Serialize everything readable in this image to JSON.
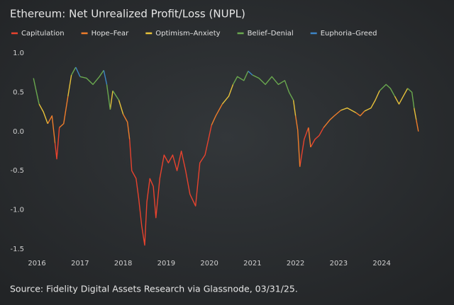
{
  "chart_data": {
    "type": "line",
    "title": "Ethereum: Net Unrealized Profit/Loss (NUPL)",
    "source": "Source: Fidelity Digital Assets Research via Glassnode, 03/31/25.",
    "x": [
      2015.92,
      2015.97,
      2016.05,
      2016.15,
      2016.25,
      2016.35,
      2016.42,
      2016.46,
      2016.52,
      2016.62,
      2016.72,
      2016.8,
      2016.9,
      2017.0,
      2017.15,
      2017.3,
      2017.45,
      2017.55,
      2017.62,
      2017.7,
      2017.76,
      2017.9,
      2018.0,
      2018.1,
      2018.15,
      2018.2,
      2018.3,
      2018.36,
      2018.43,
      2018.5,
      2018.55,
      2018.62,
      2018.7,
      2018.76,
      2018.85,
      2018.95,
      2019.05,
      2019.15,
      2019.25,
      2019.35,
      2019.45,
      2019.55,
      2019.68,
      2019.78,
      2019.9,
      2019.98,
      2020.05,
      2020.15,
      2020.3,
      2020.45,
      2020.55,
      2020.65,
      2020.8,
      2020.9,
      2021.0,
      2021.15,
      2021.3,
      2021.45,
      2021.6,
      2021.75,
      2021.85,
      2021.95,
      2022.0,
      2022.05,
      2022.1,
      2022.2,
      2022.3,
      2022.35,
      2022.45,
      2022.55,
      2022.65,
      2022.8,
      2022.9,
      2023.05,
      2023.2,
      2023.4,
      2023.5,
      2023.6,
      2023.75,
      2023.85,
      2023.95,
      2024.1,
      2024.2,
      2024.3,
      2024.4,
      2024.5,
      2024.6,
      2024.7,
      2024.75,
      2024.8,
      2024.85
    ],
    "series": [
      {
        "name": "Capitulation",
        "color": "#e8432e",
        "values": [
          null,
          null,
          null,
          null,
          null,
          null,
          -0.15,
          -0.35,
          null,
          null,
          null,
          null,
          null,
          null,
          null,
          null,
          null,
          null,
          null,
          null,
          null,
          null,
          null,
          null,
          -0.1,
          -0.5,
          -0.6,
          -0.85,
          -1.2,
          -1.45,
          -0.9,
          -0.6,
          -0.7,
          -1.1,
          -0.6,
          -0.3,
          -0.4,
          -0.3,
          -0.5,
          -0.25,
          -0.5,
          -0.8,
          -0.95,
          -0.4,
          -0.3,
          -0.1,
          null,
          null,
          null,
          null,
          null,
          null,
          null,
          null,
          null,
          null,
          null,
          null,
          null,
          null,
          null,
          null,
          null,
          null,
          -0.45,
          -0.1,
          null,
          -0.2,
          -0.1,
          -0.05,
          null,
          null,
          null,
          null,
          null,
          null,
          null,
          null,
          null,
          null,
          null,
          null,
          null,
          null,
          null,
          null,
          null,
          null,
          null,
          null,
          null
        ]
      },
      {
        "name": "Hope–Fear",
        "color": "#ee7d2b",
        "values": [
          null,
          null,
          null,
          null,
          0.1,
          0.2,
          null,
          null,
          0.05,
          0.1,
          null,
          null,
          null,
          null,
          null,
          null,
          null,
          null,
          null,
          null,
          null,
          null,
          0.22,
          0.12,
          null,
          null,
          null,
          null,
          null,
          null,
          null,
          null,
          null,
          null,
          null,
          null,
          null,
          null,
          null,
          null,
          null,
          null,
          null,
          null,
          null,
          null,
          0.08,
          0.2,
          null,
          null,
          null,
          null,
          null,
          null,
          null,
          null,
          null,
          null,
          null,
          null,
          null,
          null,
          0.2,
          0.02,
          null,
          null,
          0.05,
          null,
          null,
          null,
          0.05,
          0.15,
          0.2,
          null,
          null,
          0.24,
          0.2,
          null,
          null,
          null,
          null,
          null,
          null,
          null,
          null,
          null,
          null,
          null,
          null,
          0.15,
          0.0
        ]
      },
      {
        "name": "Optimism–Anxiety",
        "color": "#e8c23a",
        "values": [
          null,
          null,
          0.35,
          0.25,
          null,
          null,
          null,
          null,
          null,
          null,
          0.45,
          null,
          null,
          null,
          null,
          null,
          null,
          null,
          null,
          0.28,
          null,
          0.4,
          null,
          null,
          null,
          null,
          null,
          null,
          null,
          null,
          null,
          null,
          null,
          null,
          null,
          null,
          null,
          null,
          null,
          null,
          null,
          null,
          null,
          null,
          null,
          null,
          null,
          null,
          0.35,
          0.45,
          null,
          null,
          null,
          null,
          null,
          null,
          null,
          null,
          null,
          null,
          null,
          0.4,
          null,
          null,
          null,
          null,
          null,
          null,
          null,
          null,
          null,
          null,
          null,
          0.27,
          0.3,
          null,
          null,
          0.26,
          0.3,
          0.4,
          null,
          null,
          null,
          0.45,
          0.35,
          0.45,
          null,
          null,
          0.3,
          null,
          null
        ]
      },
      {
        "name": "Belief–Denial",
        "color": "#6aa84f",
        "values": [
          0.68,
          0.55,
          null,
          null,
          null,
          null,
          null,
          null,
          null,
          null,
          null,
          0.72,
          null,
          0.7,
          0.68,
          0.6,
          0.7,
          null,
          0.6,
          null,
          0.52,
          null,
          null,
          null,
          null,
          null,
          null,
          null,
          null,
          null,
          null,
          null,
          null,
          null,
          null,
          null,
          null,
          null,
          null,
          null,
          null,
          null,
          null,
          null,
          null,
          null,
          null,
          null,
          null,
          null,
          0.6,
          0.7,
          0.65,
          null,
          0.72,
          0.68,
          0.6,
          0.7,
          0.6,
          0.65,
          0.5,
          null,
          null,
          null,
          null,
          null,
          null,
          null,
          null,
          null,
          null,
          null,
          null,
          null,
          null,
          null,
          null,
          null,
          null,
          null,
          0.52,
          0.6,
          0.55,
          null,
          null,
          null,
          0.55,
          0.5,
          null,
          null,
          null
        ]
      },
      {
        "name": "Euphoria–Greed",
        "color": "#3d85c6",
        "values": [
          null,
          null,
          null,
          null,
          null,
          null,
          null,
          null,
          null,
          null,
          null,
          null,
          0.82,
          null,
          null,
          null,
          null,
          0.78,
          null,
          null,
          null,
          null,
          null,
          null,
          null,
          null,
          null,
          null,
          null,
          null,
          null,
          null,
          null,
          null,
          null,
          null,
          null,
          null,
          null,
          null,
          null,
          null,
          null,
          null,
          null,
          null,
          null,
          null,
          null,
          null,
          null,
          null,
          null,
          0.77,
          null,
          null,
          null,
          null,
          null,
          null,
          null,
          null,
          null,
          null,
          null,
          null,
          null,
          null,
          null,
          null,
          null,
          null,
          null,
          null,
          null,
          null,
          null,
          null,
          null,
          null,
          null,
          null,
          null,
          null,
          null,
          null,
          null,
          null,
          null,
          null,
          null
        ]
      }
    ],
    "xlim": [
      2015.9,
      2025.1
    ],
    "xticks": [
      2016,
      2017,
      2018,
      2019,
      2020,
      2021,
      2022,
      2023,
      2024
    ],
    "ylim": [
      -1.55,
      1.05
    ],
    "yticks": [
      {
        "value": 1,
        "label": "1.0"
      },
      {
        "value": 0.5,
        "label": "0.5"
      },
      {
        "value": 0,
        "label": "0.0"
      },
      {
        "value": -0.5,
        "label": "-0.5"
      },
      {
        "value": -1,
        "label": "-1.0"
      },
      {
        "value": -1.5,
        "label": "-1.5"
      }
    ],
    "grid": false
  }
}
